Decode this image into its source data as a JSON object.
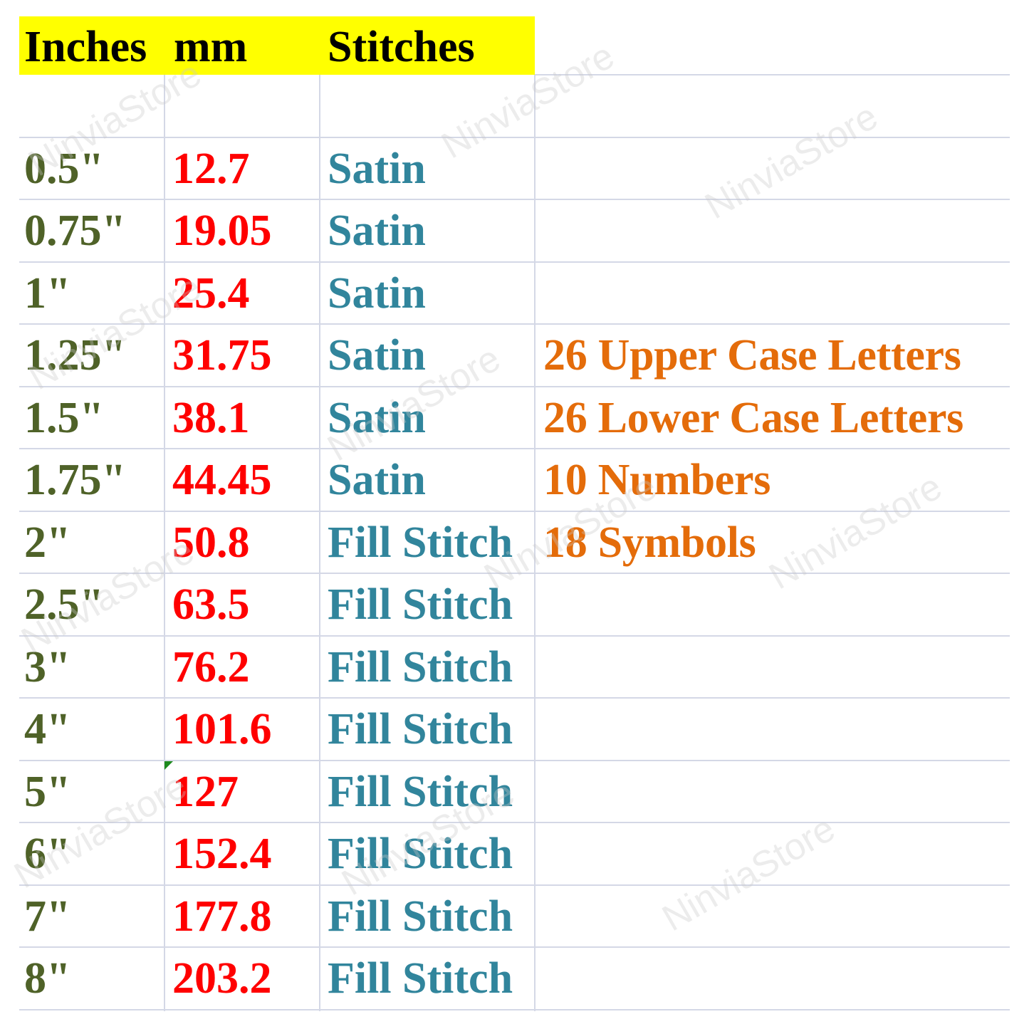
{
  "colors": {
    "header_bg": "#ffff00",
    "inches": "#4f6228",
    "mm": "#ff0000",
    "stitches": "#31859c",
    "notes": "#e46c0a",
    "grid": "#d4d8e6"
  },
  "header": {
    "inches": "Inches",
    "mm": "mm",
    "stitches": "Stitches"
  },
  "rows": [
    {
      "inches": "0.5\"",
      "mm": "12.7",
      "stitch": "Satin",
      "note": ""
    },
    {
      "inches": "0.75\"",
      "mm": "19.05",
      "stitch": "Satin",
      "note": ""
    },
    {
      "inches": "1\"",
      "mm": "25.4",
      "stitch": "Satin",
      "note": ""
    },
    {
      "inches": "1.25\"",
      "mm": "31.75",
      "stitch": "Satin",
      "note": "26 Upper Case Letters"
    },
    {
      "inches": "1.5\"",
      "mm": "38.1",
      "stitch": "Satin",
      "note": "26 Lower Case Letters"
    },
    {
      "inches": "1.75\"",
      "mm": "44.45",
      "stitch": "Satin",
      "note": "10 Numbers"
    },
    {
      "inches": "2\"",
      "mm": "50.8",
      "stitch": "Fill Stitch",
      "note": "18 Symbols"
    },
    {
      "inches": "2.5\"",
      "mm": "63.5",
      "stitch": "Fill Stitch",
      "note": ""
    },
    {
      "inches": "3\"",
      "mm": "76.2",
      "stitch": "Fill Stitch",
      "note": ""
    },
    {
      "inches": "4\"",
      "mm": "101.6",
      "stitch": "Fill Stitch",
      "note": ""
    },
    {
      "inches": "5\"",
      "mm": "127",
      "stitch": "Fill Stitch",
      "note": ""
    },
    {
      "inches": "6\"",
      "mm": "152.4",
      "stitch": "Fill Stitch",
      "note": ""
    },
    {
      "inches": "7\"",
      "mm": "177.8",
      "stitch": "Fill Stitch",
      "note": ""
    },
    {
      "inches": "8\"",
      "mm": "203.2",
      "stitch": "Fill Stitch",
      "note": ""
    }
  ],
  "watermark": "NinviaStore"
}
